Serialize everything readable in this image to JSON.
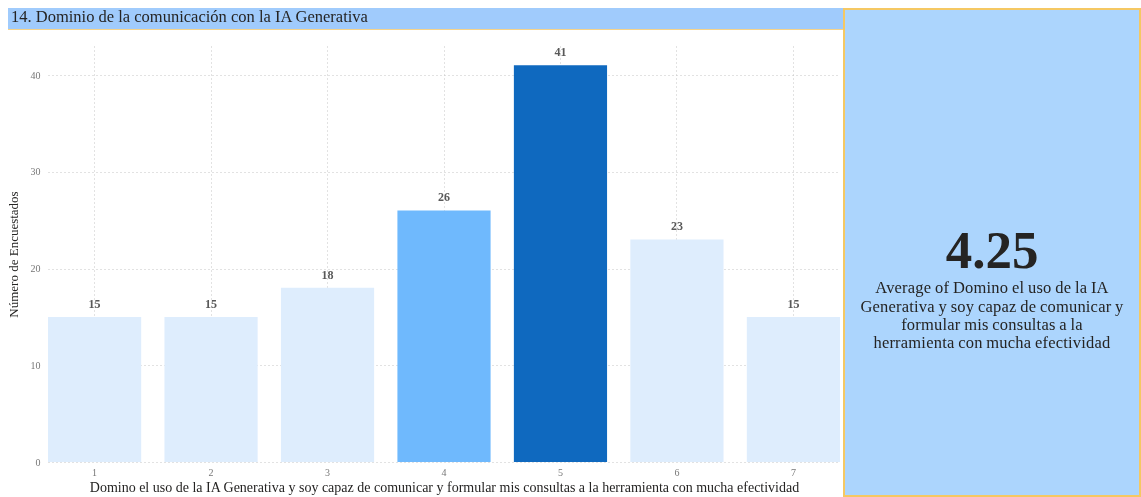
{
  "chart_data": [
    {
      "type": "bar",
      "title": "14. Dominio de la comunicación con la IA Generativa",
      "xlabel": "Domino el uso de la IA Generativa y soy capaz de comunicar y formular mis consultas a la herramienta con mucha efectividad",
      "ylabel": "Número de Encuestados",
      "categories": [
        "1",
        "2",
        "3",
        "4",
        "5",
        "6",
        "7"
      ],
      "values": [
        15,
        15,
        18,
        26,
        41,
        23,
        15
      ],
      "colors": [
        "#deedfd",
        "#deedfd",
        "#deedfd",
        "#6fb9fd",
        "#0f69bf",
        "#deedfd",
        "#deedfd"
      ],
      "ylim": [
        0,
        43
      ],
      "yticks": [
        0,
        10,
        20,
        30,
        40
      ],
      "grid": true,
      "data_labels": true
    },
    {
      "type": "other",
      "annotations": [
        "4.25",
        "Average of Domino el uso de la IA Generativa y soy capaz de comunicar y formular mis consultas a la herramienta con mucha efectividad"
      ]
    }
  ]
}
